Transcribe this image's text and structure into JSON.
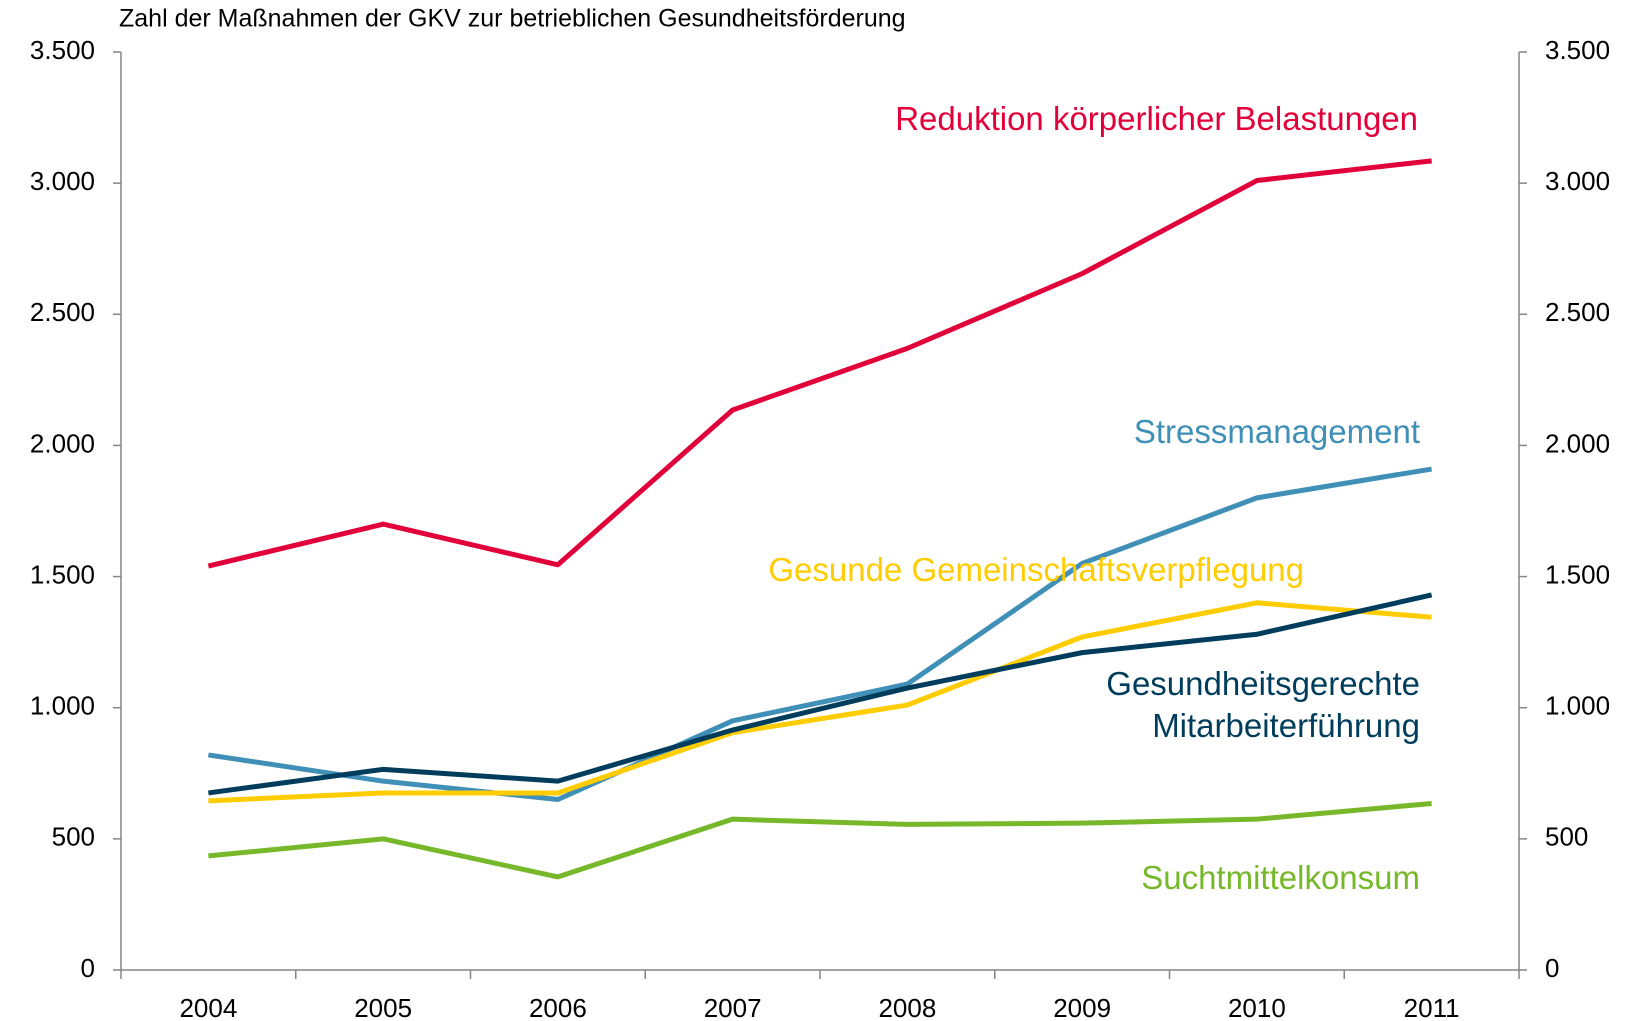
{
  "chart_data": {
    "type": "line",
    "title": "Zahl der Maßnahmen der GKV zur betrieblichen Gesundheitsförderung",
    "categories": [
      "2004",
      "2005",
      "2006",
      "2007",
      "2008",
      "2009",
      "2010",
      "2011"
    ],
    "series": [
      {
        "name": "Reduktion körperlicher Belastungen",
        "color": "#e2003a",
        "values": [
          1540,
          1700,
          1545,
          2135,
          2370,
          2655,
          3010,
          3085
        ]
      },
      {
        "name": "Stressmanagement",
        "color": "#3f8fb7",
        "values": [
          820,
          720,
          650,
          950,
          1090,
          1550,
          1800,
          1910
        ]
      },
      {
        "name": "Gesunde Gemeinschaftsverpflegung",
        "color": "#ffcc00",
        "values": [
          645,
          675,
          675,
          905,
          1010,
          1270,
          1400,
          1345
        ]
      },
      {
        "name": "Gesundheitsgerechte Mitarbeiterführung",
        "color": "#003d5c",
        "values": [
          675,
          765,
          720,
          915,
          1075,
          1210,
          1280,
          1430
        ]
      },
      {
        "name": "Suchtmittelkonsum",
        "color": "#76b82a",
        "values": [
          435,
          500,
          355,
          575,
          555,
          560,
          575,
          635
        ]
      }
    ],
    "ylim": [
      0,
      3500
    ],
    "yticks": [
      0,
      500,
      {
        "value": 1000,
        "label": "1.000"
      },
      {
        "value": 1500,
        "label": "1.500"
      },
      {
        "value": 2000,
        "label": "2.000"
      },
      {
        "value": 2500,
        "label": "2.500"
      },
      {
        "value": 3000,
        "label": "3.000"
      },
      {
        "value": 3500,
        "label": "3.500"
      }
    ],
    "y2lim": [
      0,
      3500
    ],
    "y2ticks": [
      0,
      500,
      {
        "value": 1000,
        "label": "1.000"
      },
      {
        "value": 1500,
        "label": "1.500"
      },
      {
        "value": 2000,
        "label": "2.000"
      },
      {
        "value": 2500,
        "label": "2.500"
      },
      {
        "value": 3000,
        "label": "3.000"
      },
      {
        "value": 3500,
        "label": "3.500"
      }
    ],
    "grid": false
  }
}
